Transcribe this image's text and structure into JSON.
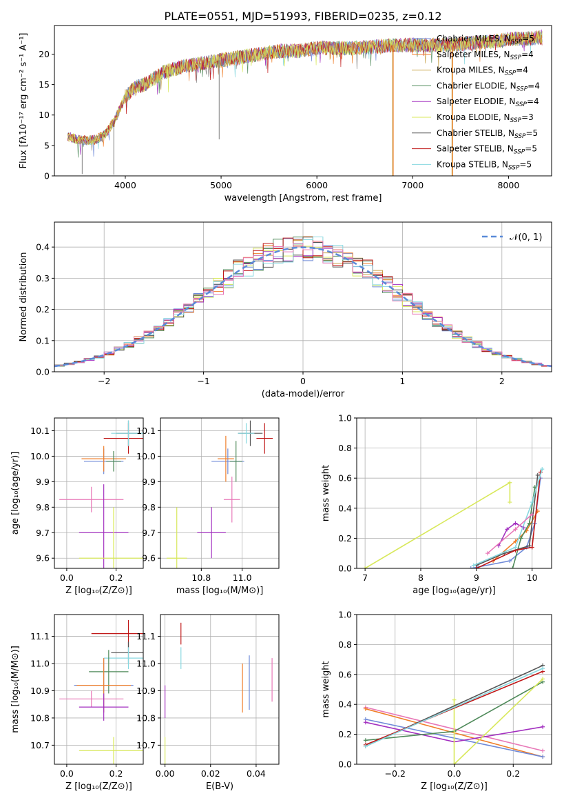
{
  "page_title": "PLATE=0551, MJD=51993, FIBERID=0235, z=0.12",
  "colors": {
    "Chabrier MILES": "#6f8ad8",
    "Salpeter MILES": "#f07f2a",
    "Kroupa MILES": "#c8a24a",
    "Chabrier ELODIE": "#4f8a5a",
    "Salpeter ELODIE": "#a330c0",
    "Kroupa ELODIE": "#d8e85a",
    "Chabrier STELIB": "#3c3c3c",
    "Salpeter STELIB": "#c01818",
    "Kroupa STELIB": "#88d8e0",
    "extra_pink": "#e878b8",
    "gaussian": "#5a8ad8"
  },
  "chart_data": [
    {
      "id": "spectrum",
      "type": "line",
      "title": "PLATE=0551, MJD=51993, FIBERID=0235, z=0.12",
      "xlabel": "wavelength [Angstrom, rest frame]",
      "ylabel": "Flux [fλ10⁻¹⁷ erg cm⁻² s⁻¹ A⁻¹]",
      "xlim": [
        3260,
        8450
      ],
      "ylim": [
        0,
        24.7
      ],
      "xticks": [
        4000,
        5000,
        6000,
        7000,
        8000
      ],
      "yticks": [
        0,
        5,
        10,
        15,
        20
      ],
      "legend_position": "top-right",
      "series_names": [
        "Chabrier MILES, N_SSP=5",
        "Salpeter MILES, N_SSP=4",
        "Kroupa MILES, N_SSP=4",
        "Chabrier ELODIE, N_SSP=4",
        "Salpeter ELODIE, N_SSP=4",
        "Kroupa ELODIE, N_SSP=3",
        "Chabrier STELIB, N_SSP=5",
        "Salpeter STELIB, N_SSP=5",
        "Kroupa STELIB, N_SSP=5"
      ],
      "continuum": {
        "x": [
          3400,
          3500,
          3600,
          3700,
          3800,
          3900,
          4000,
          4100,
          4200,
          4300,
          4400,
          4600,
          4800,
          5000,
          5200,
          5400,
          5600,
          5800,
          6000,
          6200,
          6400,
          6600,
          6800,
          7000,
          7200,
          7400,
          7600,
          7800,
          8000,
          8200,
          8350
        ],
        "y": [
          6.5,
          6.0,
          5.8,
          6.0,
          7.0,
          9.5,
          13.0,
          14.5,
          15.0,
          16.0,
          17.0,
          18.0,
          18.5,
          19.0,
          19.5,
          20.0,
          20.5,
          20.5,
          21.0,
          21.0,
          21.0,
          21.2,
          21.5,
          21.5,
          21.5,
          21.5,
          21.8,
          22.0,
          22.5,
          22.5,
          22.8
        ]
      },
      "deep_dips": [
        [
          3550,
          0.3
        ],
        [
          3880,
          0.2
        ],
        [
          6790,
          0.0
        ],
        [
          7410,
          0.0
        ],
        [
          4980,
          6.0
        ]
      ]
    },
    {
      "id": "residuals",
      "type": "histogram",
      "xlabel": "(data-model)/error",
      "ylabel": "Normed distribution",
      "xlim": [
        -2.5,
        2.5
      ],
      "ylim": [
        0,
        0.48
      ],
      "xticks": [
        -2,
        -1,
        0,
        1,
        2
      ],
      "yticks": [
        0.0,
        0.1,
        0.2,
        0.3,
        0.4
      ],
      "grid": true,
      "legend_position": "top-right",
      "gaussian_label": "𝒩(0, 1)"
    },
    {
      "id": "age-vs-Z",
      "type": "errorbar",
      "xlabel": "Z [log₁₀(Z/Z⊙)]",
      "ylabel": "age  [log₁₀(age/yr)]",
      "xlim": [
        -0.05,
        0.31
      ],
      "ylim": [
        9.56,
        10.15
      ],
      "xticks": [
        0.0,
        0.2
      ],
      "yticks": [
        9.6,
        9.7,
        9.8,
        9.9,
        10.0,
        10.1
      ],
      "grid": true,
      "points": [
        {
          "series": "Chabrier MILES",
          "x": 0.15,
          "y": 9.98,
          "xerr": 0.08,
          "yerr": 0.05
        },
        {
          "series": "Salpeter MILES",
          "x": 0.15,
          "y": 9.99,
          "xerr": 0.09,
          "yerr": 0.05
        },
        {
          "series": "Chabrier STELIB",
          "x": 0.25,
          "y": 10.09,
          "xerr": 0.05,
          "yerr": 0.05
        },
        {
          "series": "Salpeter STELIB",
          "x": 0.25,
          "y": 10.07,
          "xerr": 0.1,
          "yerr": 0.06
        },
        {
          "series": "Kroupa STELIB",
          "x": 0.25,
          "y": 10.09,
          "xerr": 0.07,
          "yerr": 0.05
        },
        {
          "series": "Chabrier ELODIE",
          "x": 0.19,
          "y": 9.98,
          "xerr": 0.03,
          "yerr": 0.04
        },
        {
          "series": "extra_pink",
          "x": 0.1,
          "y": 9.83,
          "xerr": 0.13,
          "yerr": 0.05
        },
        {
          "series": "Salpeter ELODIE",
          "x": 0.15,
          "y": 9.7,
          "xerr": 0.1,
          "yerr": 0.19
        },
        {
          "series": "Kroupa ELODIE",
          "x": 0.19,
          "y": 9.6,
          "xerr": 0.14,
          "yerr": 0.2
        }
      ]
    },
    {
      "id": "age-vs-mass",
      "type": "errorbar",
      "xlabel": "mass [log₁₀(M/M⊙)]",
      "ylabel": "",
      "xlim": [
        10.6,
        11.18
      ],
      "ylim": [
        9.56,
        10.15
      ],
      "xticks": [
        10.8,
        11.0
      ],
      "yticks": [
        9.6,
        9.7,
        9.8,
        9.9,
        10.0,
        10.1
      ],
      "grid": true,
      "points": [
        {
          "series": "Chabrier MILES",
          "x": 10.93,
          "y": 9.98,
          "xerr": 0.08,
          "yerr": 0.05
        },
        {
          "series": "Salpeter MILES",
          "x": 10.92,
          "y": 9.99,
          "xerr": 0.04,
          "yerr": 0.09
        },
        {
          "series": "Chabrier STELIB",
          "x": 11.04,
          "y": 10.09,
          "xerr": 0.06,
          "yerr": 0.05
        },
        {
          "series": "Salpeter STELIB",
          "x": 11.11,
          "y": 10.07,
          "xerr": 0.04,
          "yerr": 0.06
        },
        {
          "series": "Kroupa STELIB",
          "x": 11.02,
          "y": 10.09,
          "xerr": 0.04,
          "yerr": 0.04
        },
        {
          "series": "Chabrier ELODIE",
          "x": 10.97,
          "y": 9.98,
          "xerr": 0.03,
          "yerr": 0.08
        },
        {
          "series": "extra_pink",
          "x": 10.95,
          "y": 9.83,
          "xerr": 0.04,
          "yerr": 0.09
        },
        {
          "series": "Salpeter ELODIE",
          "x": 10.85,
          "y": 9.7,
          "xerr": 0.07,
          "yerr": 0.1
        },
        {
          "series": "Kroupa ELODIE",
          "x": 10.68,
          "y": 9.6,
          "xerr": 0.05,
          "yerr": 0.2
        }
      ]
    },
    {
      "id": "mass-weight-vs-age",
      "type": "line",
      "xlabel": "age  [log₁₀(age/yr)]",
      "ylabel": "mass weight",
      "xlim": [
        6.85,
        10.35
      ],
      "ylim": [
        0,
        1.0
      ],
      "xticks": [
        7,
        8,
        9,
        10
      ],
      "yticks": [
        0.0,
        0.2,
        0.4,
        0.6,
        0.8,
        1.0
      ],
      "grid": true,
      "series": [
        {
          "name": "Kroupa ELODIE",
          "x": [
            7.0,
            9.6,
            9.6
          ],
          "y": [
            0.0,
            0.57,
            0.44
          ]
        },
        {
          "name": "Chabrier MILES",
          "x": [
            8.9,
            9.6,
            9.9,
            10.05,
            10.15
          ],
          "y": [
            0.0,
            0.05,
            0.14,
            0.3,
            0.6
          ]
        },
        {
          "name": "Salpeter MILES",
          "x": [
            9.3,
            9.7,
            9.9,
            10.1
          ],
          "y": [
            0.05,
            0.18,
            0.25,
            0.38
          ]
        },
        {
          "name": "Chabrier ELODIE",
          "x": [
            9.65,
            9.8,
            9.95,
            10.05
          ],
          "y": [
            0.0,
            0.2,
            0.3,
            0.54
          ]
        },
        {
          "name": "Salpeter ELODIE",
          "x": [
            9.4,
            9.55,
            9.7,
            9.85
          ],
          "y": [
            0.15,
            0.26,
            0.3,
            0.27
          ]
        },
        {
          "name": "Chabrier STELIB",
          "x": [
            9.0,
            9.5,
            9.95,
            10.1
          ],
          "y": [
            0.02,
            0.1,
            0.15,
            0.62
          ]
        },
        {
          "name": "Salpeter STELIB",
          "x": [
            9.0,
            9.7,
            10.0,
            10.15
          ],
          "y": [
            0.0,
            0.12,
            0.14,
            0.64
          ]
        },
        {
          "name": "Kroupa STELIB",
          "x": [
            8.95,
            9.7,
            10.0,
            10.18
          ],
          "y": [
            0.02,
            0.14,
            0.44,
            0.66
          ]
        },
        {
          "name": "extra_pink",
          "x": [
            9.2,
            9.7,
            10.0
          ],
          "y": [
            0.1,
            0.26,
            0.36
          ]
        }
      ]
    },
    {
      "id": "mass-vs-Z",
      "type": "errorbar",
      "xlabel": "Z [log₁₀(Z/Z⊙)]",
      "ylabel": "mass [log₁₀(M/M⊙)]",
      "xlim": [
        -0.05,
        0.31
      ],
      "ylim": [
        10.63,
        11.18
      ],
      "xticks": [
        0.0,
        0.2
      ],
      "yticks": [
        10.7,
        10.8,
        10.9,
        11.0,
        11.1
      ],
      "grid": true,
      "points": [
        {
          "series": "Salpeter STELIB",
          "x": 0.25,
          "y": 11.11,
          "xerr": 0.15,
          "yerr": 0.05
        },
        {
          "series": "Chabrier STELIB",
          "x": 0.25,
          "y": 11.04,
          "xerr": 0.07,
          "yerr": 0.04
        },
        {
          "series": "Kroupa STELIB",
          "x": 0.25,
          "y": 11.02,
          "xerr": 0.1,
          "yerr": 0.04
        },
        {
          "series": "Chabrier ELODIE",
          "x": 0.17,
          "y": 10.97,
          "xerr": 0.08,
          "yerr": 0.08
        },
        {
          "series": "Chabrier MILES",
          "x": 0.15,
          "y": 10.92,
          "xerr": 0.12,
          "yerr": 0.1
        },
        {
          "series": "Salpeter MILES",
          "x": 0.15,
          "y": 10.92,
          "xerr": 0.11,
          "yerr": 0.1
        },
        {
          "series": "extra_pink",
          "x": 0.1,
          "y": 10.87,
          "xerr": 0.13,
          "yerr": 0.03
        },
        {
          "series": "Salpeter ELODIE",
          "x": 0.15,
          "y": 10.84,
          "xerr": 0.1,
          "yerr": 0.05
        },
        {
          "series": "Kroupa ELODIE",
          "x": 0.19,
          "y": 10.68,
          "xerr": 0.14,
          "yerr": 0.05
        }
      ]
    },
    {
      "id": "mass-vs-EBV",
      "type": "errorbar",
      "xlabel": "E(B-V)",
      "ylabel": "",
      "xlim": [
        -0.002,
        0.05
      ],
      "ylim": [
        10.63,
        11.18
      ],
      "xticks": [
        0.0,
        0.02,
        0.04
      ],
      "yticks": [
        10.7,
        10.8,
        10.9,
        11.0,
        11.1
      ],
      "grid": true,
      "points": [
        {
          "series": "Kroupa ELODIE",
          "x": 0.0,
          "y": 10.68,
          "xerr": 0,
          "yerr": 0.05
        },
        {
          "series": "Salpeter ELODIE",
          "x": 0.0,
          "y": 10.86,
          "xerr": 0,
          "yerr": 0.06
        },
        {
          "series": "Salpeter STELIB",
          "x": 0.007,
          "y": 11.11,
          "xerr": 0,
          "yerr": 0.04
        },
        {
          "series": "Kroupa STELIB",
          "x": 0.007,
          "y": 11.02,
          "xerr": 0,
          "yerr": 0.04
        },
        {
          "series": "Salpeter MILES",
          "x": 0.034,
          "y": 10.91,
          "xerr": 0,
          "yerr": 0.09
        },
        {
          "series": "Chabrier MILES",
          "x": 0.037,
          "y": 10.93,
          "xerr": 0,
          "yerr": 0.1
        },
        {
          "series": "extra_pink",
          "x": 0.047,
          "y": 10.94,
          "xerr": 0,
          "yerr": 0.08
        }
      ]
    },
    {
      "id": "mass-weight-vs-Z",
      "type": "line",
      "xlabel": "Z [log₁₀(Z/Z⊙)]",
      "ylabel": "mass weight",
      "xlim": [
        -0.33,
        0.33
      ],
      "ylim": [
        0,
        1.0
      ],
      "xticks": [
        -0.2,
        0.0,
        0.2
      ],
      "yticks": [
        0.0,
        0.2,
        0.4,
        0.6,
        0.8,
        1.0
      ],
      "grid": true,
      "series": [
        {
          "name": "extra_pink",
          "x": [
            -0.3,
            0.3
          ],
          "y": [
            0.38,
            0.09
          ]
        },
        {
          "name": "Salpeter MILES",
          "x": [
            -0.3,
            0.3
          ],
          "y": [
            0.37,
            0.05
          ]
        },
        {
          "name": "Chabrier MILES",
          "x": [
            -0.3,
            0.3
          ],
          "y": [
            0.3,
            0.05
          ]
        },
        {
          "name": "Salpeter ELODIE",
          "x": [
            -0.3,
            0.0,
            0.3
          ],
          "y": [
            0.28,
            0.15,
            0.25
          ]
        },
        {
          "name": "Chabrier ELODIE",
          "x": [
            -0.3,
            0.0,
            0.3
          ],
          "y": [
            0.16,
            0.22,
            0.55
          ]
        },
        {
          "name": "Kroupa ELODIE",
          "x": [
            0.0,
            0.0,
            0.3
          ],
          "y": [
            0.43,
            0.0,
            0.57
          ]
        },
        {
          "name": "Chabrier STELIB",
          "x": [
            -0.3,
            0.3
          ],
          "y": [
            0.12,
            0.66
          ]
        },
        {
          "name": "Salpeter STELIB",
          "x": [
            -0.3,
            0.3
          ],
          "y": [
            0.13,
            0.62
          ]
        },
        {
          "name": "Kroupa STELIB",
          "x": [
            -0.3,
            0.3
          ],
          "y": [
            0.12,
            0.64
          ]
        }
      ]
    }
  ]
}
